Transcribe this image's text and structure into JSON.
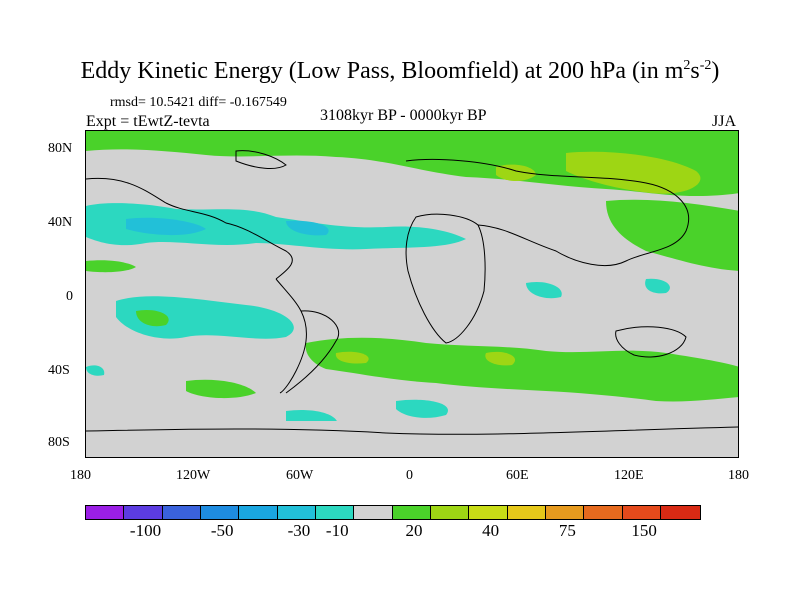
{
  "header": {
    "title_main": "Eddy Kinetic Energy (Low Pass, Bloomfield) at 200 hPa (in m",
    "title_sup1": "2",
    "title_mid": "s",
    "title_sup2": "-2",
    "title_end": ")",
    "rmsd_line": "rmsd= 10.5421 diff= -0.167549",
    "expt": "Expt = tEwtZ-tevta",
    "period": "3108kyr BP - 0000kyr BP",
    "season": "JJA"
  },
  "axes": {
    "y_labels": [
      "80N",
      "40N",
      "0",
      "40S",
      "80S"
    ],
    "x_labels": [
      "180",
      "120W",
      "60W",
      "0",
      "60E",
      "120E",
      "180"
    ]
  },
  "colorbar": {
    "colors": [
      "#9b1fe6",
      "#5c3ce1",
      "#3a62dc",
      "#1e8ce0",
      "#1aa6e0",
      "#22c0d8",
      "#2cd8c0",
      "#d2d2d2",
      "#4ad22a",
      "#9ed614",
      "#c8dc16",
      "#e6c81a",
      "#e69a1e",
      "#e66a1e",
      "#e44a1c",
      "#d82a14"
    ],
    "labels": [
      "-100",
      "-50",
      "-30",
      "-10",
      "20",
      "40",
      "75",
      "150"
    ]
  },
  "map": {
    "background": "#d2d2d2",
    "positive_light": "#4ad22a",
    "positive_mid": "#9ed614",
    "negative_light": "#2cd8c0",
    "negative_mid": "#22c0d8"
  }
}
